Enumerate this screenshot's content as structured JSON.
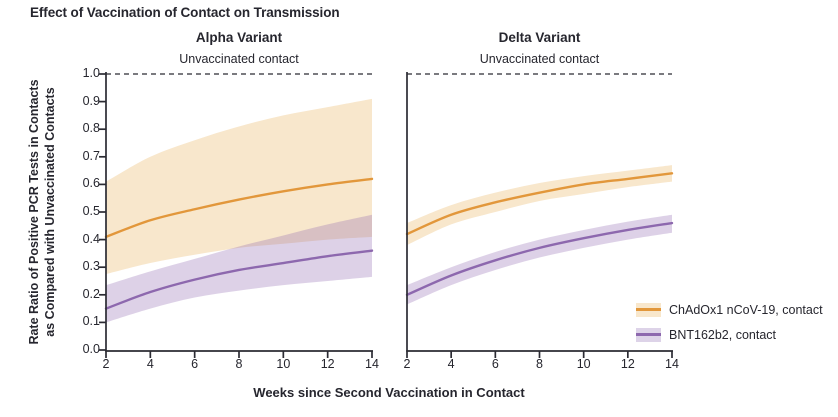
{
  "figure": {
    "title": "Effect of Vaccination of Contact on Transmission",
    "x_axis_title": "Weeks since Second Vaccination in Contact",
    "y_axis_title_line1": "Rate Ratio of Positive PCR Tests in Contacts",
    "y_axis_title_line2": "as Compared with Unvaccinated Contacts",
    "text_color": "#26262e"
  },
  "legend": {
    "position": "bottom-right",
    "entries": [
      {
        "label": "ChAdOx1 nCoV-19, contact",
        "line_color": "#E2973B",
        "band_color": "#F8E7CC"
      },
      {
        "label": "BNT162b2, contact",
        "line_color": "#8D68AE",
        "band_color": "#DDD3E8"
      }
    ]
  },
  "chart_data": {
    "type": "line",
    "x": [
      2,
      4,
      6,
      8,
      10,
      12,
      14
    ],
    "xlabel": "Weeks since Second Vaccination in Contact",
    "ylabel": "Rate Ratio of Positive PCR Tests in Contacts as Compared with Unvaccinated Contacts",
    "ylim": [
      0.0,
      1.0
    ],
    "yticks": [
      0.0,
      0.1,
      0.2,
      0.3,
      0.4,
      0.5,
      0.6,
      0.7,
      0.8,
      0.9,
      1.0
    ],
    "grid": false,
    "reference_line": {
      "y": 1.0,
      "label": "Unvaccinated contact",
      "style": "dashed"
    },
    "panels": [
      {
        "title": "Alpha Variant",
        "series": [
          {
            "name": "ChAdOx1 nCoV-19, contact",
            "line_color": "#E2973B",
            "band_fill": "#F8E7CC",
            "values": [
              0.41,
              0.47,
              0.51,
              0.545,
              0.575,
              0.6,
              0.62
            ],
            "ci_upper": [
              0.61,
              0.7,
              0.76,
              0.81,
              0.85,
              0.88,
              0.91
            ],
            "ci_lower": [
              0.275,
              0.315,
              0.345,
              0.37,
              0.385,
              0.4,
              0.41
            ]
          },
          {
            "name": "BNT162b2, contact",
            "line_color": "#8D68AE",
            "band_fill": "rgba(141,104,174,0.30)",
            "values": [
              0.15,
              0.21,
              0.255,
              0.29,
              0.315,
              0.34,
              0.36
            ],
            "ci_upper": [
              0.235,
              0.285,
              0.33,
              0.375,
              0.415,
              0.455,
              0.49
            ],
            "ci_lower": [
              0.1,
              0.15,
              0.19,
              0.215,
              0.235,
              0.25,
              0.265
            ]
          }
        ]
      },
      {
        "title": "Delta Variant",
        "series": [
          {
            "name": "ChAdOx1 nCoV-19, contact",
            "line_color": "#E2973B",
            "band_fill": "#F8E7CC",
            "values": [
              0.42,
              0.49,
              0.535,
              0.57,
              0.6,
              0.62,
              0.64
            ],
            "ci_upper": [
              0.46,
              0.525,
              0.57,
              0.605,
              0.63,
              0.65,
              0.67
            ],
            "ci_lower": [
              0.38,
              0.455,
              0.5,
              0.54,
              0.565,
              0.59,
              0.61
            ]
          },
          {
            "name": "BNT162b2, contact",
            "line_color": "#8D68AE",
            "band_fill": "rgba(141,104,174,0.30)",
            "values": [
              0.2,
              0.27,
              0.325,
              0.37,
              0.405,
              0.435,
              0.46
            ],
            "ci_upper": [
              0.235,
              0.3,
              0.355,
              0.4,
              0.435,
              0.465,
              0.49
            ],
            "ci_lower": [
              0.165,
              0.235,
              0.29,
              0.335,
              0.37,
              0.4,
              0.425
            ]
          }
        ]
      }
    ]
  }
}
